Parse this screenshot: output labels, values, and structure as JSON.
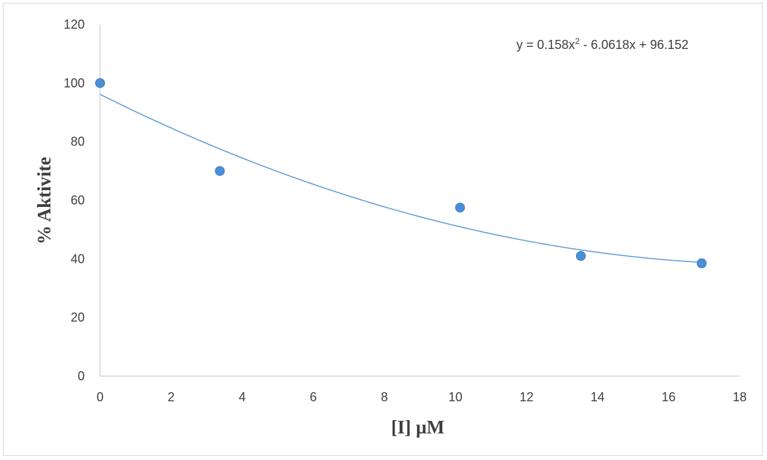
{
  "chart_data": {
    "type": "scatter",
    "xlabel": "[I] µM",
    "ylabel": "% Aktivite",
    "xlim": [
      0,
      18
    ],
    "ylim": [
      0,
      120
    ],
    "x_ticks": [
      0,
      2,
      4,
      6,
      8,
      10,
      12,
      14,
      16,
      18
    ],
    "y_ticks": [
      0,
      20,
      40,
      60,
      80,
      100,
      120
    ],
    "grid": false,
    "legend": "none",
    "series": [
      {
        "x": [
          0,
          3.37,
          10.13,
          13.53,
          16.93
        ],
        "y": [
          100,
          70,
          57.5,
          41,
          38.5
        ],
        "color": "#4a8fd6"
      }
    ],
    "trendline": {
      "type": "polynomial",
      "coefficients": [
        0.158,
        -6.0618,
        96.152
      ],
      "color": "#5b9bd5",
      "equation": {
        "prefix": "y = 0.158x",
        "superscript": "2",
        "suffix": " - 6.0618x + 96.152"
      }
    }
  }
}
